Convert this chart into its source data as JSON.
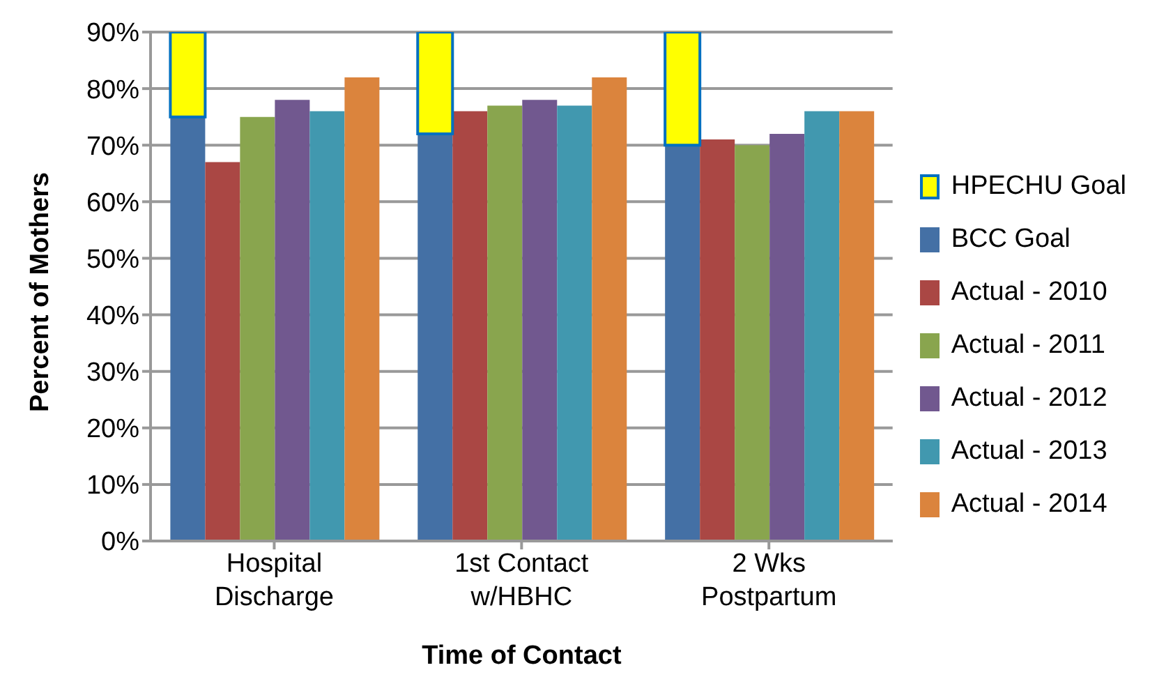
{
  "chart_data": {
    "type": "bar",
    "xlabel": "Time of Contact",
    "ylabel": "Percent of Mothers",
    "categories": [
      "Hospital Discharge",
      "1st Contact w/HBHC",
      "2 Wks Postpartum"
    ],
    "series": [
      {
        "name": "HPECHU Goal",
        "color": "#ffff00",
        "values": [
          15,
          18,
          20
        ],
        "base": [
          75,
          72,
          70
        ]
      },
      {
        "name": "BCC Goal",
        "color": "#4470a5",
        "values": [
          75,
          72,
          70
        ]
      },
      {
        "name": "Actual - 2010",
        "color": "#aa4744",
        "values": [
          67,
          76,
          71
        ]
      },
      {
        "name": "Actual - 2011",
        "color": "#89a54e",
        "values": [
          75,
          77,
          70
        ]
      },
      {
        "name": "Actual - 2012",
        "color": "#71588f",
        "values": [
          78,
          78,
          72
        ]
      },
      {
        "name": "Actual - 2013",
        "color": "#4198af",
        "values": [
          76,
          77,
          76
        ]
      },
      {
        "name": "Actual - 2014",
        "color": "#db843d",
        "values": [
          82,
          82,
          76
        ]
      }
    ],
    "ylim": [
      0,
      90
    ],
    "yticks": [
      {
        "value": 0,
        "label": "0%"
      },
      {
        "value": 10,
        "label": "10%"
      },
      {
        "value": 20,
        "label": "20%"
      },
      {
        "value": 30,
        "label": "30%"
      },
      {
        "value": 40,
        "label": "40%"
      },
      {
        "value": 50,
        "label": "50%"
      },
      {
        "value": 60,
        "label": "60%"
      },
      {
        "value": 70,
        "label": "70%"
      },
      {
        "value": 80,
        "label": "80%"
      },
      {
        "value": 90,
        "label": "90%"
      }
    ],
    "grid": "y",
    "legend": "right"
  }
}
